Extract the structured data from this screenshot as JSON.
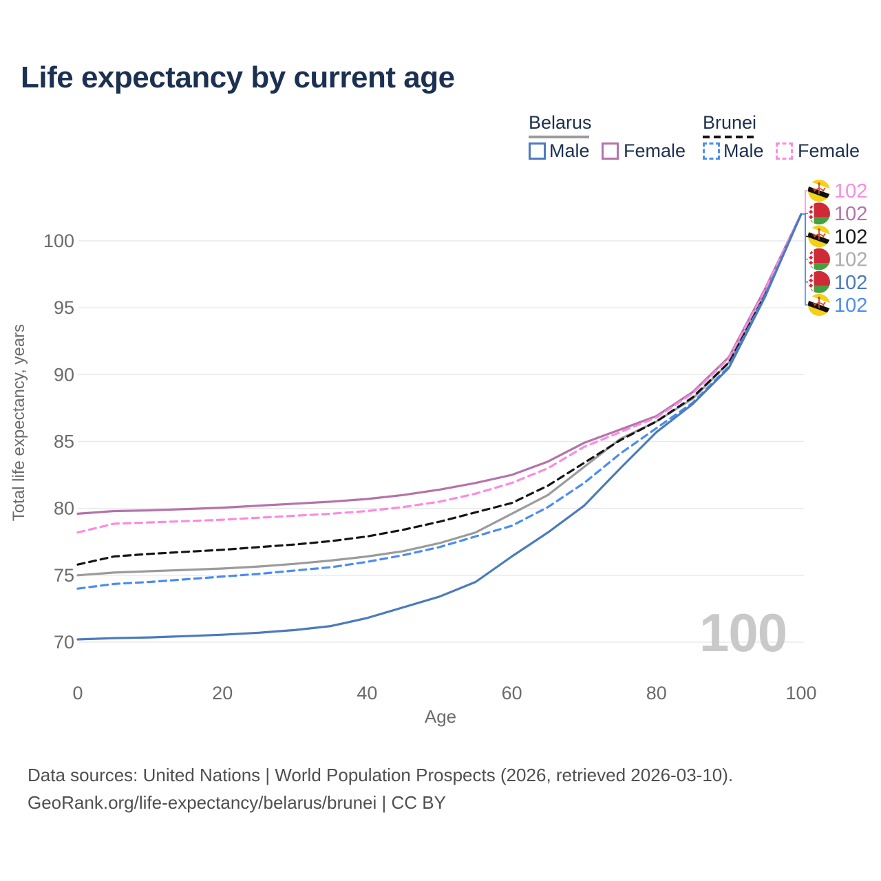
{
  "title": "Life expectancy by current age",
  "legend": {
    "groups": [
      {
        "name": "Belarus",
        "line_style": "solid",
        "line_color": "#9b9b9b",
        "items": [
          {
            "label": "Male",
            "color": "#4a7bbd"
          },
          {
            "label": "Female",
            "color": "#b473aa"
          }
        ]
      },
      {
        "name": "Brunei",
        "line_style": "dashed",
        "line_color": "#141414",
        "items": [
          {
            "label": "Male",
            "color": "#4a8df2"
          },
          {
            "label": "Female",
            "color": "#fb8be0"
          }
        ]
      }
    ]
  },
  "chart_data": {
    "type": "line",
    "title": "Life expectancy by current age",
    "xlabel": "Age",
    "ylabel": "Total life expectancy, years",
    "xlim": [
      0,
      100
    ],
    "ylim": [
      68.5,
      103.5
    ],
    "xticks": [
      0,
      20,
      40,
      60,
      80,
      100
    ],
    "yticks": [
      70,
      75,
      80,
      85,
      90,
      95,
      100
    ],
    "grid": true,
    "x": [
      0,
      5,
      10,
      15,
      20,
      25,
      30,
      35,
      40,
      45,
      50,
      55,
      60,
      65,
      70,
      75,
      80,
      85,
      90,
      95,
      100
    ],
    "series": [
      {
        "name": "Belarus Male",
        "country": "Belarus",
        "sex": "Male",
        "style": "solid",
        "color": "#4a7bbd",
        "end_label": "102",
        "values": [
          70.2,
          70.3,
          70.35,
          70.45,
          70.55,
          70.7,
          70.9,
          71.2,
          71.8,
          72.6,
          73.4,
          74.5,
          76.4,
          78.2,
          80.2,
          83.0,
          85.7,
          87.8,
          90.5,
          95.8,
          102
        ]
      },
      {
        "name": "Belarus Female",
        "country": "Belarus",
        "sex": "Female",
        "style": "solid",
        "color": "#b473aa",
        "end_label": "102",
        "values": [
          79.6,
          79.8,
          79.85,
          79.95,
          80.05,
          80.2,
          80.35,
          80.5,
          80.7,
          81.0,
          81.4,
          81.9,
          82.5,
          83.5,
          84.9,
          85.9,
          86.9,
          88.7,
          91.3,
          96.4,
          102
        ]
      },
      {
        "name": "Belarus Total",
        "country": "Belarus",
        "sex": "Total",
        "style": "solid",
        "color": "#9b9b9b",
        "end_label": "102",
        "label_color": "#ababab",
        "values": [
          75.0,
          75.2,
          75.3,
          75.4,
          75.5,
          75.65,
          75.85,
          76.1,
          76.4,
          76.8,
          77.4,
          78.2,
          79.6,
          81.0,
          83.1,
          85.2,
          86.5,
          88.2,
          90.9,
          96.0,
          102
        ]
      },
      {
        "name": "Brunei Male",
        "country": "Brunei",
        "sex": "Male",
        "style": "dashed",
        "color": "#4a8df2",
        "end_label": "102",
        "values": [
          74.0,
          74.35,
          74.5,
          74.7,
          74.9,
          75.1,
          75.35,
          75.6,
          76.0,
          76.5,
          77.1,
          77.9,
          78.7,
          80.1,
          81.9,
          84.1,
          86.0,
          87.9,
          90.6,
          95.9,
          102
        ]
      },
      {
        "name": "Brunei Female",
        "country": "Brunei",
        "sex": "Female",
        "style": "dashed",
        "color": "#fb8be0",
        "end_label": "102",
        "values": [
          78.2,
          78.85,
          78.95,
          79.05,
          79.15,
          79.3,
          79.45,
          79.6,
          79.8,
          80.1,
          80.5,
          81.1,
          81.9,
          83.0,
          84.6,
          85.7,
          86.8,
          88.6,
          91.2,
          96.3,
          102
        ]
      },
      {
        "name": "Brunei Total",
        "country": "Brunei",
        "sex": "Total",
        "style": "dashed",
        "color": "#161616",
        "end_label": "102",
        "values": [
          75.8,
          76.4,
          76.6,
          76.75,
          76.9,
          77.1,
          77.3,
          77.55,
          77.9,
          78.4,
          79.0,
          79.7,
          80.4,
          81.7,
          83.4,
          85.1,
          86.5,
          88.3,
          90.9,
          96.1,
          102
        ]
      }
    ],
    "right_label_order": [
      "Brunei Female",
      "Belarus Female",
      "Brunei Total",
      "Belarus Total",
      "Belarus Male",
      "Brunei Male"
    ],
    "legend_position": "top-right"
  },
  "age_watermark": "100",
  "footer": {
    "line1": "Data sources: United Nations | World Population Prospects (2026, retrieved 2026-03-10).",
    "line2": "GeoRank.org/life-expectancy/belarus/brunei | CC BY"
  },
  "colors": {
    "title_text": "#1c3151",
    "axis_text": "#6b6b6b",
    "gridline": "#e8e8e8",
    "watermark": "#c9c9c9",
    "footer_text": "#4f4f4f"
  }
}
